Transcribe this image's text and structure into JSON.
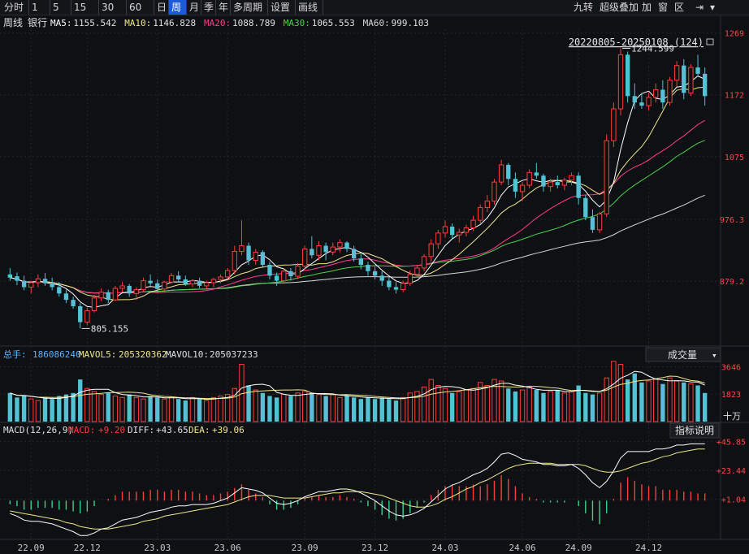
{
  "toolbar": {
    "periods": [
      "分时",
      "1分",
      "5分",
      "15分",
      "30分",
      "60分",
      "日",
      "周",
      "月",
      "季",
      "年",
      "多周期",
      "设置",
      "画线"
    ],
    "active_period": "周",
    "right_tools": [
      "九转",
      "超级叠加",
      "加",
      "窗",
      "区"
    ]
  },
  "header": {
    "period_label": "周线",
    "stock_name": "银行",
    "ma_readouts": [
      {
        "label": "MA5:",
        "value": "1155.542",
        "color": "#ffffff"
      },
      {
        "label": "MA10:",
        "value": "1146.828",
        "color": "#f0e68c"
      },
      {
        "label": "MA20:",
        "value": "1088.789",
        "color": "#ff3c8c"
      },
      {
        "label": "MA30:",
        "value": "1065.553",
        "color": "#4cd24c"
      },
      {
        "label": "MA60:",
        "value": "999.103",
        "color": "#d8d8d8"
      }
    ],
    "range_label": "20220805-20250108 (124)"
  },
  "annotations": {
    "high": "1244.599",
    "low": "805.155"
  },
  "volume_header": {
    "total_label": "总手:",
    "total_value": "186086240",
    "mavol5_label": "MAVOL5:",
    "mavol5_value": "205320362",
    "mavol10_label": "MAVOL10:",
    "mavol10_value": "205037233",
    "selector": "成交量"
  },
  "macd_header": {
    "title": "MACD(12,26,9)",
    "macd_label": "MACD:",
    "macd_value": "+9.20",
    "diff_label": "DIFF:",
    "diff_value": "+43.65",
    "dea_label": "DEA:",
    "dea_value": "+39.06",
    "help_button": "指标说明"
  },
  "colors": {
    "up": "#ff3c3c",
    "down": "#52c2d4",
    "ma5": "#ffffff",
    "ma10": "#f0e68c",
    "ma20": "#ff3c8c",
    "ma30": "#4cd24c",
    "ma60": "#d8d8d8",
    "grid": "#23262d",
    "axis_label": "#ff4646"
  },
  "chart_data": [
    {
      "type": "candlestick",
      "title": "周线 银行",
      "x_ticks": [
        "22.09",
        "22.12",
        "23.03",
        "23.06",
        "23.09",
        "23.12",
        "24.03",
        "24.06",
        "24.09",
        "24.12"
      ],
      "y_ticks": [
        "1269",
        "1172",
        "1075",
        "976.3",
        "879.2"
      ],
      "ylim": [
        780,
        1275
      ],
      "grid": true,
      "legend": "top-left",
      "annotations": [
        {
          "label": "1244.599",
          "type": "high"
        },
        {
          "label": "805.155",
          "type": "low"
        }
      ],
      "ohlc": [
        [
          890,
          900,
          880,
          885
        ],
        [
          887,
          893,
          873,
          880
        ],
        [
          880,
          888,
          865,
          870
        ],
        [
          870,
          880,
          860,
          877
        ],
        [
          877,
          890,
          870,
          883
        ],
        [
          883,
          892,
          872,
          876
        ],
        [
          876,
          885,
          865,
          870
        ],
        [
          870,
          878,
          855,
          860
        ],
        [
          860,
          866,
          845,
          850
        ],
        [
          850,
          855,
          836,
          840
        ],
        [
          840,
          845,
          805,
          815
        ],
        [
          815,
          838,
          810,
          833
        ],
        [
          833,
          858,
          830,
          853
        ],
        [
          853,
          868,
          848,
          862
        ],
        [
          862,
          866,
          845,
          850
        ],
        [
          850,
          872,
          848,
          868
        ],
        [
          868,
          878,
          862,
          872
        ],
        [
          872,
          875,
          855,
          860
        ],
        [
          860,
          870,
          850,
          866
        ],
        [
          866,
          885,
          862,
          880
        ],
        [
          880,
          890,
          872,
          876
        ],
        [
          876,
          882,
          862,
          867
        ],
        [
          867,
          880,
          864,
          878
        ],
        [
          878,
          892,
          875,
          888
        ],
        [
          888,
          895,
          878,
          882
        ],
        [
          882,
          888,
          872,
          875
        ],
        [
          875,
          882,
          870,
          880
        ],
        [
          880,
          885,
          868,
          872
        ],
        [
          872,
          880,
          866,
          877
        ],
        [
          877,
          885,
          870,
          882
        ],
        [
          882,
          890,
          876,
          886
        ],
        [
          886,
          900,
          882,
          896
        ],
        [
          896,
          935,
          890,
          926
        ],
        [
          926,
          975,
          920,
          935
        ],
        [
          935,
          940,
          905,
          912
        ],
        [
          912,
          930,
          905,
          925
        ],
        [
          925,
          928,
          900,
          905
        ],
        [
          905,
          910,
          882,
          888
        ],
        [
          888,
          893,
          872,
          880
        ],
        [
          880,
          900,
          875,
          895
        ],
        [
          895,
          900,
          880,
          887
        ],
        [
          887,
          908,
          883,
          903
        ],
        [
          903,
          935,
          898,
          930
        ],
        [
          930,
          950,
          915,
          920
        ],
        [
          920,
          942,
          912,
          935
        ],
        [
          935,
          940,
          912,
          925
        ],
        [
          925,
          940,
          920,
          933
        ],
        [
          933,
          945,
          925,
          940
        ],
        [
          940,
          942,
          925,
          930
        ],
        [
          930,
          935,
          910,
          915
        ],
        [
          915,
          922,
          898,
          905
        ],
        [
          905,
          910,
          888,
          895
        ],
        [
          895,
          902,
          882,
          888
        ],
        [
          888,
          895,
          872,
          880
        ],
        [
          880,
          885,
          865,
          870
        ],
        [
          870,
          878,
          860,
          866
        ],
        [
          866,
          880,
          862,
          876
        ],
        [
          876,
          896,
          872,
          890
        ],
        [
          890,
          905,
          885,
          900
        ],
        [
          900,
          922,
          895,
          918
        ],
        [
          918,
          945,
          910,
          938
        ],
        [
          938,
          960,
          930,
          955
        ],
        [
          955,
          975,
          948,
          965
        ],
        [
          965,
          970,
          945,
          952
        ],
        [
          952,
          962,
          940,
          956
        ],
        [
          956,
          968,
          950,
          963
        ],
        [
          963,
          982,
          958,
          975
        ],
        [
          975,
          1000,
          970,
          995
        ],
        [
          995,
          1015,
          988,
          1005
        ],
        [
          1005,
          1040,
          1000,
          1035
        ],
        [
          1035,
          1070,
          1030,
          1062
        ],
        [
          1062,
          1065,
          1030,
          1040
        ],
        [
          1040,
          1050,
          1010,
          1020
        ],
        [
          1020,
          1035,
          1005,
          1030
        ],
        [
          1030,
          1055,
          1025,
          1050
        ],
        [
          1050,
          1065,
          1040,
          1045
        ],
        [
          1045,
          1048,
          1020,
          1028
        ],
        [
          1028,
          1040,
          1020,
          1035
        ],
        [
          1035,
          1045,
          1025,
          1030
        ],
        [
          1030,
          1042,
          1022,
          1038
        ],
        [
          1038,
          1050,
          1030,
          1045
        ],
        [
          1045,
          1050,
          1000,
          1010
        ],
        [
          1010,
          1015,
          975,
          980
        ],
        [
          980,
          992,
          955,
          960
        ],
        [
          960,
          988,
          955,
          985
        ],
        [
          985,
          1110,
          980,
          1100
        ],
        [
          1100,
          1160,
          1090,
          1150
        ],
        [
          1150,
          1245,
          1140,
          1235
        ],
        [
          1235,
          1240,
          1160,
          1170
        ],
        [
          1170,
          1190,
          1150,
          1160
        ],
        [
          1160,
          1175,
          1150,
          1155
        ],
        [
          1155,
          1175,
          1148,
          1168
        ],
        [
          1168,
          1190,
          1160,
          1180
        ],
        [
          1180,
          1195,
          1150,
          1160
        ],
        [
          1160,
          1200,
          1155,
          1195
        ],
        [
          1195,
          1225,
          1185,
          1218
        ],
        [
          1218,
          1228,
          1165,
          1175
        ],
        [
          1175,
          1220,
          1170,
          1215
        ],
        [
          1215,
          1235,
          1200,
          1205
        ],
        [
          1205,
          1215,
          1155,
          1170
        ]
      ],
      "volume_y_ticks": [
        "3646",
        "1823",
        "十万"
      ],
      "volume": [
        1900,
        1600,
        1700,
        1500,
        1400,
        1600,
        1500,
        1700,
        1800,
        1900,
        2800,
        2200,
        2000,
        1800,
        1900,
        1700,
        1600,
        1800,
        1600,
        1500,
        1700,
        1600,
        1500,
        1600,
        1500,
        1400,
        1600,
        1500,
        1400,
        1600,
        1700,
        1800,
        2200,
        3800,
        2400,
        2100,
        1900,
        1700,
        1600,
        1800,
        1700,
        1900,
        2000,
        1900,
        1800,
        1700,
        1800,
        1600,
        1700,
        1600,
        1500,
        1600,
        1500,
        1600,
        1500,
        1400,
        1600,
        1900,
        2000,
        2300,
        2800,
        2400,
        2200,
        1900,
        2000,
        2100,
        2200,
        2600,
        2400,
        2800,
        2700,
        2200,
        2000,
        2100,
        2300,
        2100,
        1900,
        2000,
        2100,
        1900,
        2000,
        2400,
        1900,
        1800,
        1900,
        2900,
        4000,
        3800,
        2800,
        3200,
        2600,
        2700,
        2800,
        2500,
        2900,
        2700,
        2600,
        2500,
        2400,
        1900
      ],
      "mavol5_values_shown": "205320362",
      "macd_y_ticks": [
        "+45.85",
        "+23.44",
        "+1.04"
      ],
      "diff": [
        -10,
        -12,
        -15,
        -16,
        -16,
        -17,
        -18,
        -20,
        -22,
        -24,
        -27,
        -27,
        -25,
        -22,
        -21,
        -18,
        -15,
        -14,
        -13,
        -11,
        -9,
        -8,
        -7,
        -5,
        -4,
        -4,
        -3,
        -3,
        -3,
        -2,
        0,
        2,
        6,
        10,
        9,
        8,
        6,
        2,
        -2,
        -3,
        -2,
        0,
        3,
        5,
        7,
        7,
        8,
        9,
        9,
        8,
        6,
        3,
        0,
        -4,
        -8,
        -11,
        -12,
        -11,
        -9,
        -6,
        -1,
        4,
        9,
        12,
        14,
        17,
        20,
        22,
        25,
        30,
        36,
        37,
        35,
        32,
        31,
        30,
        28,
        28,
        27,
        27,
        28,
        25,
        20,
        14,
        10,
        15,
        23,
        33,
        38,
        38,
        38,
        38,
        40,
        40,
        41,
        43,
        43,
        44,
        44,
        44
      ],
      "dea": [
        -8,
        -9,
        -10,
        -11,
        -12,
        -13,
        -14,
        -15,
        -17,
        -18,
        -20,
        -21,
        -22,
        -22,
        -22,
        -21,
        -20,
        -19,
        -18,
        -16,
        -15,
        -14,
        -12,
        -11,
        -10,
        -9,
        -8,
        -7,
        -6,
        -5,
        -4,
        -3,
        -1,
        1,
        3,
        4,
        4,
        4,
        3,
        2,
        2,
        2,
        2,
        3,
        4,
        5,
        6,
        6,
        7,
        7,
        7,
        6,
        5,
        4,
        2,
        0,
        -2,
        -4,
        -5,
        -5,
        -4,
        -2,
        1,
        3,
        6,
        9,
        11,
        14,
        16,
        19,
        22,
        25,
        27,
        28,
        29,
        29,
        29,
        29,
        28,
        28,
        28,
        28,
        27,
        25,
        23,
        22,
        22,
        23,
        25,
        27,
        29,
        30,
        32,
        34,
        35,
        37,
        38,
        39,
        40,
        40
      ],
      "macd_value_labels": {
        "macd": "+9.20",
        "diff": "+43.65",
        "dea": "+39.06"
      }
    }
  ]
}
